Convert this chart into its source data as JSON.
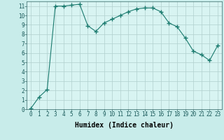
{
  "x": [
    0,
    1,
    2,
    3,
    4,
    5,
    6,
    7,
    8,
    9,
    10,
    11,
    12,
    13,
    14,
    15,
    16,
    17,
    18,
    19,
    20,
    21,
    22,
    23
  ],
  "y": [
    0.1,
    1.3,
    2.1,
    11.0,
    11.0,
    11.1,
    11.2,
    8.9,
    8.3,
    9.2,
    9.6,
    10.0,
    10.4,
    10.7,
    10.8,
    10.8,
    10.4,
    9.2,
    8.8,
    7.6,
    6.2,
    5.8,
    5.2,
    6.8
  ],
  "title": "",
  "xlabel": "Humidex (Indice chaleur)",
  "ylabel": "",
  "xlim": [
    -0.5,
    23.5
  ],
  "ylim": [
    0,
    11.5
  ],
  "line_color": "#1a7a6e",
  "marker": "+",
  "marker_size": 4.0,
  "bg_color": "#c8ecea",
  "grid_color": "#b0d0ce",
  "axis_bg": "#d8f4f2",
  "yticks": [
    0,
    1,
    2,
    3,
    4,
    5,
    6,
    7,
    8,
    9,
    10,
    11
  ],
  "xticks": [
    0,
    1,
    2,
    3,
    4,
    5,
    6,
    7,
    8,
    9,
    10,
    11,
    12,
    13,
    14,
    15,
    16,
    17,
    18,
    19,
    20,
    21,
    22,
    23
  ],
  "label_fontsize": 6.5,
  "tick_fontsize": 5.5,
  "xlabel_fontsize": 7.0
}
